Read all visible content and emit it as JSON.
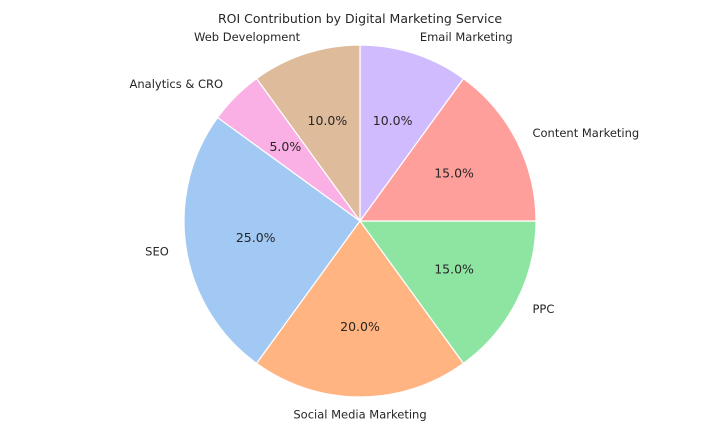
{
  "chart_data": {
    "type": "pie",
    "title": "ROI Contribution by Digital Marketing Service",
    "categories": [
      "SEO",
      "Social Media Marketing",
      "PPC",
      "Content Marketing",
      "Email Marketing",
      "Web Development",
      "Analytics & CRO"
    ],
    "values": [
      25,
      20,
      15,
      15,
      10,
      10,
      5
    ],
    "value_labels": [
      "25.0%",
      "20.0%",
      "15.0%",
      "15.0%",
      "10.0%",
      "10.0%",
      "5.0%"
    ],
    "colors": [
      "#a1c9f4",
      "#ffb482",
      "#8de5a1",
      "#ff9f9b",
      "#d0bbff",
      "#debb9b",
      "#fab0e4"
    ],
    "start_angle_deg": 144,
    "direction": "counterclockwise",
    "legend": "none"
  }
}
